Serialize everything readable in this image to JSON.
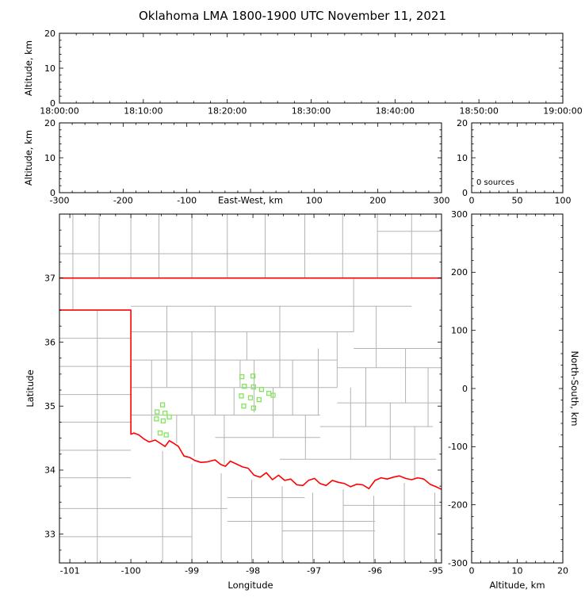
{
  "title": "Oklahoma LMA 1800-1900 UTC November 11, 2021",
  "colors": {
    "background": "#ffffff",
    "frame_border": "#c4c4c4",
    "axis": "#000000",
    "state_border": "#ff0000",
    "county_line": "#b3b3b3",
    "station_marker": "#82e45a"
  },
  "chart_data": [
    {
      "id": "time_height",
      "type": "scatter",
      "title": "",
      "xlabel": "",
      "ylabel": "Altitude, km",
      "xlim": [
        64800,
        68400
      ],
      "xticks": {
        "values": [
          64800,
          65400,
          66000,
          66600,
          67200,
          67800,
          68400
        ],
        "labels": [
          "18:00:00",
          "18:10:00",
          "18:20:00",
          "18:30:00",
          "18:40:00",
          "18:50:00",
          "19:00:00"
        ]
      },
      "ylim": [
        0,
        20
      ],
      "yticks": {
        "values": [
          0,
          10,
          20
        ],
        "labels": [
          "0",
          "10",
          "20"
        ]
      },
      "minor": {
        "x": 120,
        "y": 2
      },
      "points": []
    },
    {
      "id": "ew_height",
      "type": "scatter",
      "title": "",
      "xlabel": "East-West, km",
      "ylabel": "Altitude, km",
      "xlim": [
        -300,
        300
      ],
      "xticks": {
        "values": [
          -300,
          -200,
          -100,
          0,
          100,
          200,
          300
        ],
        "labels": [
          "-300",
          "-200",
          "-100",
          "",
          "100",
          "200",
          "300"
        ]
      },
      "ylim": [
        0,
        20
      ],
      "yticks": {
        "values": [
          0,
          10,
          20
        ],
        "labels": [
          "0",
          "10",
          "20"
        ]
      },
      "minor": {
        "x": 20,
        "y": 2
      },
      "points": []
    },
    {
      "id": "alt_histogram",
      "type": "line",
      "title": "",
      "xlabel": "",
      "ylabel": "",
      "annotation": "0 sources",
      "xlim": [
        0,
        100
      ],
      "xticks": {
        "values": [
          0,
          50,
          100
        ],
        "labels": [
          "0",
          "50",
          "100"
        ]
      },
      "ylim": [
        0,
        20
      ],
      "yticks": {
        "values": [
          0,
          10,
          20
        ],
        "labels": [
          "0",
          "10",
          "20"
        ]
      },
      "minor": {
        "x": 10,
        "y": 2
      },
      "points": []
    },
    {
      "id": "plan_view_map",
      "type": "scatter",
      "title": "",
      "xlabel": "Longitude",
      "ylabel": "Latitude",
      "xlim": [
        -101.17,
        -94.91
      ],
      "xticks": {
        "values": [
          -101,
          -100,
          -99,
          -98,
          -97,
          -96,
          -95
        ],
        "labels": [
          "-101",
          "-100",
          "-99",
          "-98",
          "-97",
          "-96",
          "-95"
        ]
      },
      "ylim": [
        32.55,
        38.0
      ],
      "yticks": {
        "values": [
          33,
          34,
          35,
          36,
          37
        ],
        "labels": [
          "33",
          "34",
          "35",
          "36",
          "37"
        ]
      },
      "minor": {
        "x": 0.25,
        "y": 0.25
      },
      "stations": [
        [
          -99.48,
          35.02
        ],
        [
          -99.57,
          34.91
        ],
        [
          -99.44,
          34.89
        ],
        [
          -99.58,
          34.8
        ],
        [
          -99.47,
          34.77
        ],
        [
          -99.37,
          34.83
        ],
        [
          -99.52,
          34.58
        ],
        [
          -99.42,
          34.55
        ],
        [
          -98.18,
          35.46
        ],
        [
          -98.0,
          35.47
        ],
        [
          -98.14,
          35.31
        ],
        [
          -97.99,
          35.3
        ],
        [
          -97.86,
          35.26
        ],
        [
          -98.19,
          35.16
        ],
        [
          -98.04,
          35.13
        ],
        [
          -97.9,
          35.1
        ],
        [
          -97.74,
          35.2
        ],
        [
          -98.15,
          35.0
        ],
        [
          -97.99,
          34.97
        ],
        [
          -97.67,
          35.17
        ]
      ],
      "state_border": [
        [
          [
            -101.17,
            37.0
          ],
          [
            -94.91,
            37.0
          ]
        ],
        [
          [
            -101.17,
            36.5
          ],
          [
            -100.0,
            36.5
          ],
          [
            -100.0,
            34.56
          ],
          [
            -99.95,
            34.58
          ],
          [
            -99.87,
            34.55
          ],
          [
            -99.79,
            34.49
          ],
          [
            -99.7,
            34.44
          ],
          [
            -99.6,
            34.47
          ],
          [
            -99.52,
            34.42
          ],
          [
            -99.44,
            34.37
          ],
          [
            -99.37,
            34.46
          ],
          [
            -99.3,
            34.42
          ],
          [
            -99.22,
            34.37
          ],
          [
            -99.13,
            34.22
          ],
          [
            -99.04,
            34.2
          ],
          [
            -98.95,
            34.15
          ],
          [
            -98.85,
            34.12
          ],
          [
            -98.74,
            34.13
          ],
          [
            -98.62,
            34.16
          ],
          [
            -98.53,
            34.09
          ],
          [
            -98.45,
            34.06
          ],
          [
            -98.37,
            34.14
          ],
          [
            -98.28,
            34.1
          ],
          [
            -98.17,
            34.05
          ],
          [
            -98.08,
            34.03
          ],
          [
            -97.98,
            33.92
          ],
          [
            -97.88,
            33.89
          ],
          [
            -97.78,
            33.96
          ],
          [
            -97.68,
            33.85
          ],
          [
            -97.58,
            33.92
          ],
          [
            -97.48,
            33.84
          ],
          [
            -97.38,
            33.86
          ],
          [
            -97.28,
            33.77
          ],
          [
            -97.18,
            33.76
          ],
          [
            -97.09,
            33.84
          ],
          [
            -96.99,
            33.87
          ],
          [
            -96.9,
            33.79
          ],
          [
            -96.8,
            33.76
          ],
          [
            -96.7,
            33.84
          ],
          [
            -96.6,
            33.81
          ],
          [
            -96.5,
            33.79
          ],
          [
            -96.4,
            33.74
          ],
          [
            -96.3,
            33.78
          ],
          [
            -96.2,
            33.77
          ],
          [
            -96.1,
            33.71
          ],
          [
            -96.0,
            33.84
          ],
          [
            -95.9,
            33.88
          ],
          [
            -95.8,
            33.86
          ],
          [
            -95.7,
            33.89
          ],
          [
            -95.6,
            33.91
          ],
          [
            -95.5,
            33.87
          ],
          [
            -95.4,
            33.85
          ],
          [
            -95.3,
            33.88
          ],
          [
            -95.2,
            33.86
          ],
          [
            -95.1,
            33.78
          ],
          [
            -95.0,
            33.74
          ],
          [
            -94.91,
            33.7
          ]
        ]
      ],
      "county_lines": {
        "horizontal": [
          [
            37.38,
            -101.17,
            -94.91
          ],
          [
            37.73,
            -95.96,
            -94.91
          ],
          [
            36.06,
            -101.17,
            -100.0
          ],
          [
            35.62,
            -101.17,
            -100.0
          ],
          [
            35.18,
            -101.17,
            -100.0
          ],
          [
            34.75,
            -101.17,
            -100.0
          ],
          [
            34.31,
            -101.17,
            -100.0
          ],
          [
            33.88,
            -101.17,
            -100.0
          ],
          [
            33.4,
            -101.17,
            -98.42
          ],
          [
            32.96,
            -101.17,
            -99.0
          ],
          [
            33.57,
            -98.42,
            -97.15
          ],
          [
            33.2,
            -98.42,
            -96.0
          ],
          [
            33.45,
            -96.52,
            -94.91
          ],
          [
            33.05,
            -97.52,
            -96.0
          ],
          [
            36.56,
            -100.0,
            -95.4
          ],
          [
            36.16,
            -100.0,
            -96.35
          ],
          [
            35.72,
            -100.0,
            -96.62
          ],
          [
            35.29,
            -100.0,
            -96.62
          ],
          [
            34.86,
            -100.0,
            -96.9
          ],
          [
            34.51,
            -98.62,
            -96.9
          ],
          [
            34.17,
            -97.56,
            -95.0
          ],
          [
            35.9,
            -96.35,
            -94.91
          ],
          [
            35.6,
            -96.62,
            -94.91
          ],
          [
            35.05,
            -96.62,
            -94.91
          ],
          [
            34.68,
            -96.9,
            -95.05
          ]
        ],
        "vertical": [
          [
            -100.95,
            36.5,
            38.0
          ],
          [
            -100.52,
            37.0,
            38.0
          ],
          [
            -100.0,
            37.0,
            38.0
          ],
          [
            -99.54,
            37.0,
            38.0
          ],
          [
            -99.0,
            37.0,
            38.0
          ],
          [
            -98.42,
            37.0,
            38.0
          ],
          [
            -97.8,
            37.0,
            38.0
          ],
          [
            -97.15,
            37.0,
            38.0
          ],
          [
            -96.53,
            37.0,
            38.0
          ],
          [
            -95.96,
            37.0,
            38.0
          ],
          [
            -95.4,
            37.0,
            38.0
          ],
          [
            -100.55,
            32.55,
            36.5
          ],
          [
            -99.48,
            32.55,
            34.3
          ],
          [
            -99.0,
            32.55,
            34.1
          ],
          [
            -98.52,
            32.55,
            33.95
          ],
          [
            -98.02,
            32.55,
            33.85
          ],
          [
            -97.52,
            32.55,
            33.75
          ],
          [
            -97.02,
            32.55,
            33.65
          ],
          [
            -96.52,
            32.55,
            33.7
          ],
          [
            -96.02,
            32.55,
            33.6
          ],
          [
            -95.52,
            32.55,
            33.8
          ],
          [
            -95.02,
            32.55,
            33.65
          ],
          [
            -99.66,
            34.47,
            35.72
          ],
          [
            -99.41,
            35.29,
            36.56
          ],
          [
            -99.25,
            34.42,
            34.86
          ],
          [
            -99.0,
            34.86,
            36.16
          ],
          [
            -98.96,
            34.21,
            34.86
          ],
          [
            -98.62,
            34.86,
            36.56
          ],
          [
            -98.47,
            34.09,
            34.86
          ],
          [
            -98.31,
            34.86,
            35.29
          ],
          [
            -98.21,
            35.29,
            35.72
          ],
          [
            -98.1,
            35.72,
            36.16
          ],
          [
            -97.98,
            34.9,
            35.72
          ],
          [
            -97.67,
            34.51,
            35.29
          ],
          [
            -97.56,
            35.29,
            36.56
          ],
          [
            -97.35,
            34.86,
            35.72
          ],
          [
            -97.14,
            34.17,
            34.86
          ],
          [
            -96.93,
            34.86,
            35.9
          ],
          [
            -96.62,
            35.29,
            36.16
          ],
          [
            -96.4,
            34.17,
            35.29
          ],
          [
            -96.35,
            36.16,
            37.0
          ],
          [
            -96.15,
            34.68,
            35.6
          ],
          [
            -95.98,
            35.6,
            36.56
          ],
          [
            -95.75,
            34.17,
            35.05
          ],
          [
            -95.5,
            35.05,
            35.9
          ],
          [
            -95.35,
            33.86,
            34.68
          ],
          [
            -95.13,
            34.68,
            35.6
          ]
        ]
      }
    },
    {
      "id": "ns_height",
      "type": "scatter",
      "title": "",
      "xlabel": "Altitude, km",
      "ylabel": "North-South, km",
      "xlim": [
        0,
        20
      ],
      "xticks": {
        "values": [
          0,
          10,
          20
        ],
        "labels": [
          "0",
          "10",
          "20"
        ]
      },
      "ylim": [
        -300,
        300
      ],
      "yticks": {
        "values": [
          -300,
          -200,
          -100,
          0,
          100,
          200,
          300
        ],
        "labels": [
          "-300",
          "-200",
          "-100",
          "0",
          "100",
          "200",
          "300"
        ]
      },
      "minor": {
        "x": 2,
        "y": 20
      },
      "points": []
    }
  ]
}
